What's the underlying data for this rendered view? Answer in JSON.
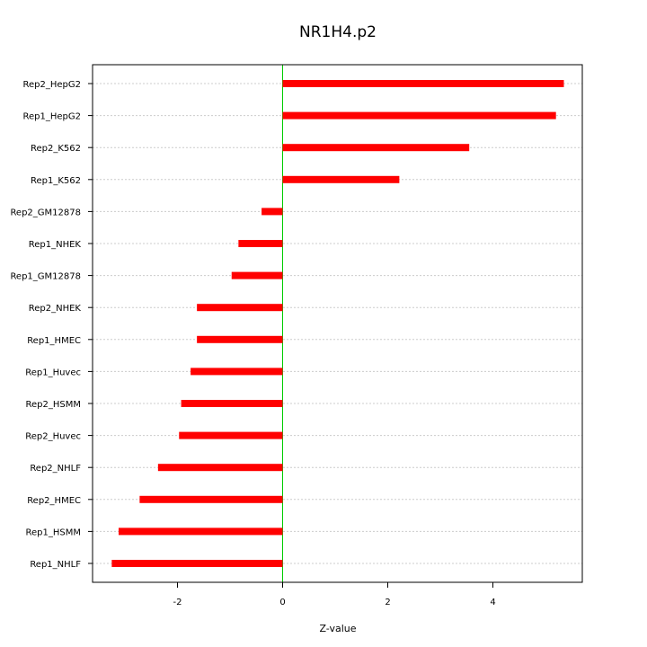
{
  "chart_data": {
    "type": "bar",
    "orientation": "horizontal",
    "title": "NR1H4.p2",
    "xlabel": "Z-value",
    "ylabel": "",
    "xlim": [
      -3.4,
      5.7
    ],
    "xticks": [
      -2,
      0,
      2,
      4
    ],
    "grid": true,
    "zero_line_color": "#00cc00",
    "bar_color": "#ff0000",
    "categories": [
      "Rep2_HepG2",
      "Rep1_HepG2",
      "Rep2_K562",
      "Rep1_K562",
      "Rep2_GM12878",
      "Rep1_NHEK",
      "Rep1_GM12878",
      "Rep2_NHEK",
      "Rep1_HMEC",
      "Rep1_Huvec",
      "Rep2_HSMM",
      "Rep2_Huvec",
      "Rep2_NHLF",
      "Rep2_HMEC",
      "Rep1_HSMM",
      "Rep1_NHLF"
    ],
    "values": [
      5.35,
      5.2,
      3.55,
      2.22,
      -0.4,
      -0.84,
      -0.97,
      -1.63,
      -1.63,
      -1.75,
      -1.93,
      -1.97,
      -2.37,
      -2.72,
      -3.12,
      -3.25
    ]
  }
}
